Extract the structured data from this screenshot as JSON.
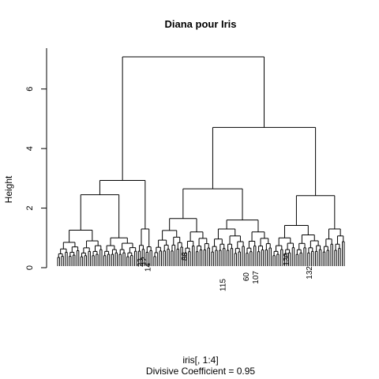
{
  "chart_data": {
    "type": "dendrogram",
    "title": "Diana pour Iris",
    "xlabel": "iris[, 1:4]",
    "sub": "Divisive Coefficient =  0.95",
    "ylabel": "Height",
    "yticks": [
      0,
      2,
      4,
      6
    ],
    "ylim": [
      0,
      7.2
    ],
    "n_leaves": 150,
    "leaf_labels_visible": [
      "23",
      "12",
      "14",
      "88",
      "115",
      "60",
      "107",
      "130",
      "132"
    ],
    "merges": [
      {
        "h": 7.08,
        "left": "A",
        "right": "B"
      },
      {
        "h": 4.71,
        "left": "B1",
        "right": "B2"
      },
      {
        "h": 2.93,
        "left": "A1",
        "right": "A2"
      },
      {
        "h": 2.65,
        "left": "B1a",
        "right": "B1b"
      },
      {
        "h": 2.45,
        "left": "A1a",
        "right": "A1b"
      },
      {
        "h": 2.42,
        "left": "B2a",
        "right": "B2b"
      },
      {
        "h": 1.65,
        "left": "B1a1",
        "right": "B1a2"
      },
      {
        "h": 1.6,
        "left": "B1b1",
        "right": "B1b2"
      },
      {
        "h": 1.42,
        "left": "B2a1",
        "right": "B2a2"
      },
      {
        "h": 1.3,
        "left": "A2a",
        "right": "A2b"
      },
      {
        "h": 1.26,
        "left": "A1a1",
        "right": "A1a2"
      }
    ]
  }
}
